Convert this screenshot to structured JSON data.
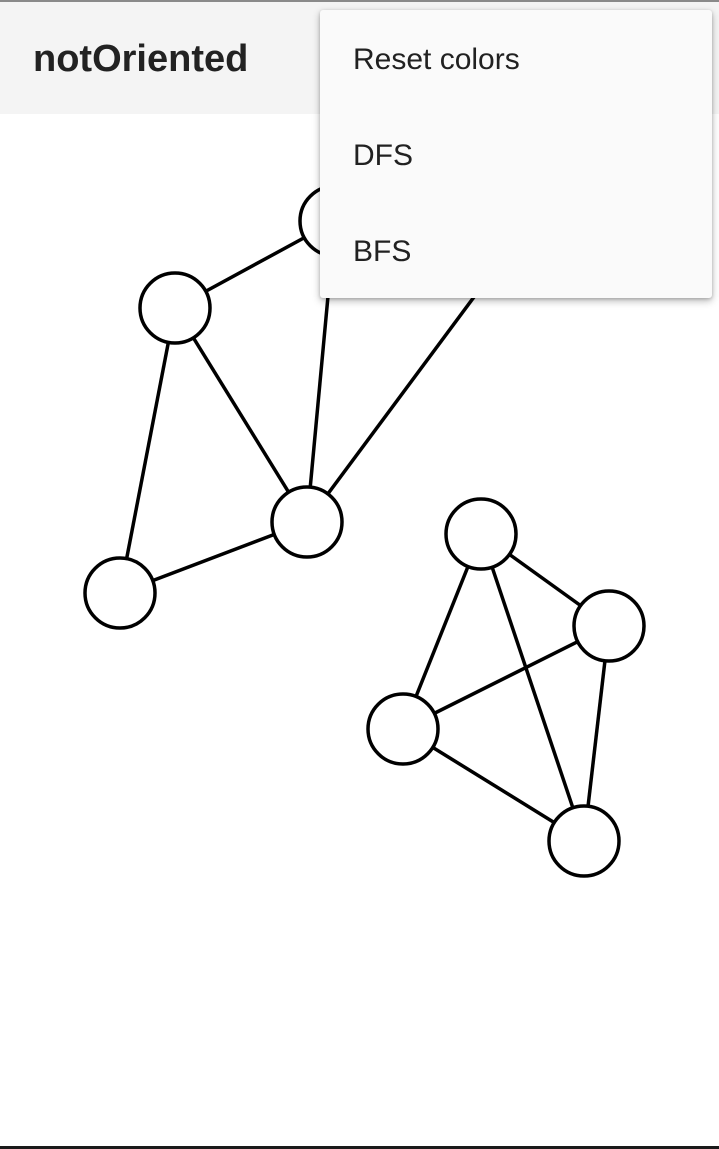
{
  "app_bar": {
    "title": "notOriented"
  },
  "overflow_menu": {
    "items": [
      {
        "label": "Reset colors"
      },
      {
        "label": "DFS"
      },
      {
        "label": "BFS"
      }
    ]
  },
  "graph": {
    "stroke_color": "#000000",
    "node_fill": "#ffffff",
    "vertex_count": 9,
    "edge_count": 12
  }
}
